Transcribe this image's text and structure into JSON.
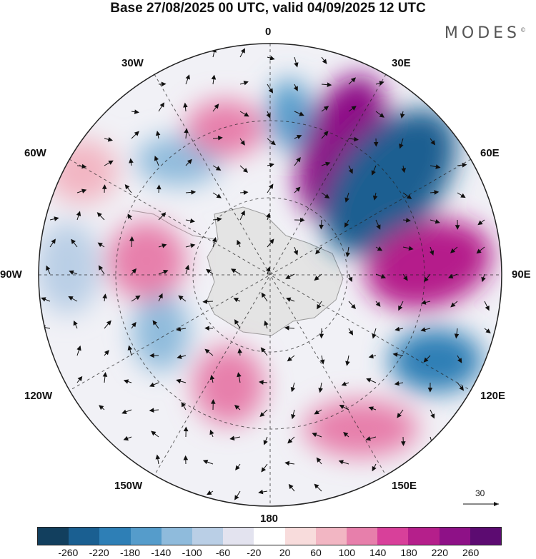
{
  "title": "Base 27/08/2025 00 UTC, valid 04/09/2025 12 UTC",
  "brand": "MODES",
  "brand_mark": "©",
  "longitudes": [
    "0",
    "30E",
    "60E",
    "90E",
    "120E",
    "150E",
    "180",
    "150W",
    "120W",
    "90W",
    "60W",
    "30W"
  ],
  "colorbar": {
    "ticks": [
      "-260",
      "-220",
      "-180",
      "-140",
      "-100",
      "-60",
      "-20",
      "20",
      "60",
      "100",
      "140",
      "180",
      "220",
      "260"
    ],
    "colors": [
      "#123f5e",
      "#1a5f91",
      "#2e7fb6",
      "#559ccb",
      "#8fbbdc",
      "#bacfe6",
      "#e3e3ef",
      "#ffffff",
      "#f8dcdc",
      "#f2b6c3",
      "#e77fab",
      "#d8409a",
      "#b51f8b",
      "#8e1187",
      "#5c0b71"
    ]
  },
  "vector_reference": "30",
  "anomalies": [
    {
      "name": "dipole-30e-positive",
      "value": 230
    },
    {
      "name": "dipole-60e-negative",
      "value": -240
    },
    {
      "name": "ridge-90e",
      "value": 200
    },
    {
      "name": "trough-120e",
      "value": -190
    },
    {
      "name": "ridge-150e",
      "value": 110
    },
    {
      "name": "ridge-165w",
      "value": 130
    },
    {
      "name": "trough-130w",
      "value": -120
    },
    {
      "name": "ridge-80w",
      "value": 120
    },
    {
      "name": "trough-90w",
      "value": -90
    },
    {
      "name": "ridge-60w",
      "value": 90
    },
    {
      "name": "trough-45w",
      "value": -110
    },
    {
      "name": "ridge-20w",
      "value": 110
    },
    {
      "name": "trough-10e",
      "value": -140
    }
  ]
}
